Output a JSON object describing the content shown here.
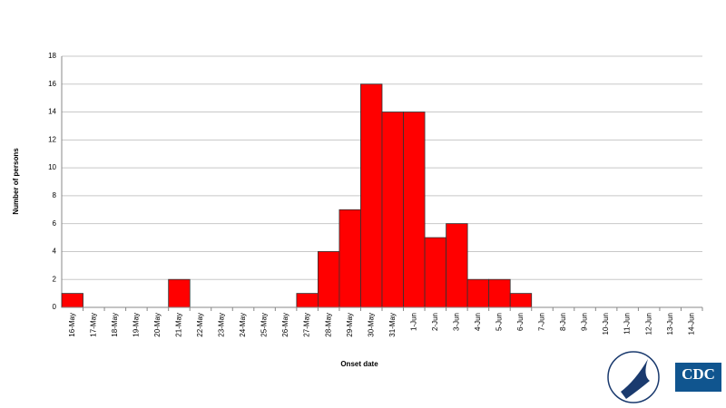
{
  "chart_data": {
    "type": "bar",
    "y_label": "Number of persons",
    "x_label": "Onset date",
    "categories": [
      "16-May",
      "17-May",
      "18-May",
      "19-May",
      "20-May",
      "21-May",
      "22-May",
      "23-May",
      "24-May",
      "25-May",
      "26-May",
      "27-May",
      "28-May",
      "29-May",
      "30-May",
      "31-May",
      "1-Jun",
      "2-Jun",
      "3-Jun",
      "4-Jun",
      "5-Jun",
      "6-Jun",
      "7-Jun",
      "8-Jun",
      "9-Jun",
      "10-Jun",
      "11-Jun",
      "12-Jun",
      "13-Jun",
      "14-Jun"
    ],
    "values": [
      1,
      0,
      0,
      0,
      0,
      2,
      0,
      0,
      0,
      0,
      0,
      1,
      4,
      7,
      16,
      14,
      14,
      5,
      6,
      2,
      2,
      1,
      0,
      0,
      0,
      0,
      0,
      0,
      0,
      0
    ],
    "color": "#ff0000",
    "ylim": [
      0,
      18
    ],
    "yticks": [
      0,
      2,
      4,
      6,
      8,
      10,
      12,
      14,
      16,
      18
    ],
    "grid": true
  },
  "cdc_logo": "CDC"
}
